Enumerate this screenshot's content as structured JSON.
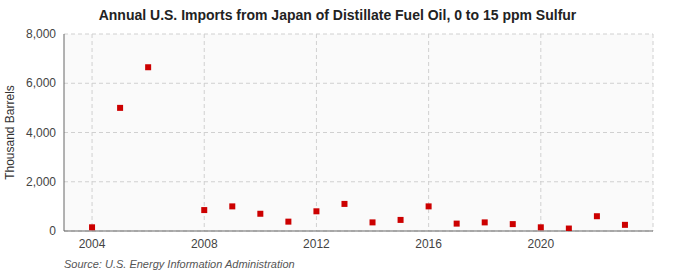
{
  "chart_data": {
    "type": "scatter",
    "title": "Annual U.S. Imports from Japan of Distillate Fuel Oil, 0 to 15 ppm Sulfur",
    "y_label": "Thousand Barrels",
    "annotations": [
      "Source: U.S. Energy Information Administration"
    ],
    "x": [
      2004,
      2005,
      2006,
      2008,
      2009,
      2010,
      2011,
      2012,
      2013,
      2014,
      2015,
      2016,
      2017,
      2018,
      2019,
      2020,
      2021,
      2022,
      2023
    ],
    "values": [
      150,
      5000,
      6650,
      850,
      1000,
      700,
      380,
      800,
      1100,
      350,
      450,
      1000,
      300,
      350,
      280,
      150,
      100,
      600,
      250
    ],
    "color": "#cc0000",
    "marker": "square",
    "xlim": [
      2003,
      2024
    ],
    "xticks": [
      2004,
      2008,
      2012,
      2016,
      2020
    ],
    "ylim": [
      0,
      8000
    ],
    "yticks": [
      0,
      {
        "value": 2000,
        "label": "2,000"
      },
      {
        "value": 4000,
        "label": "4,000"
      },
      {
        "value": 6000,
        "label": "6,000"
      },
      {
        "value": 8000,
        "label": "8,000"
      }
    ],
    "grid": true
  }
}
